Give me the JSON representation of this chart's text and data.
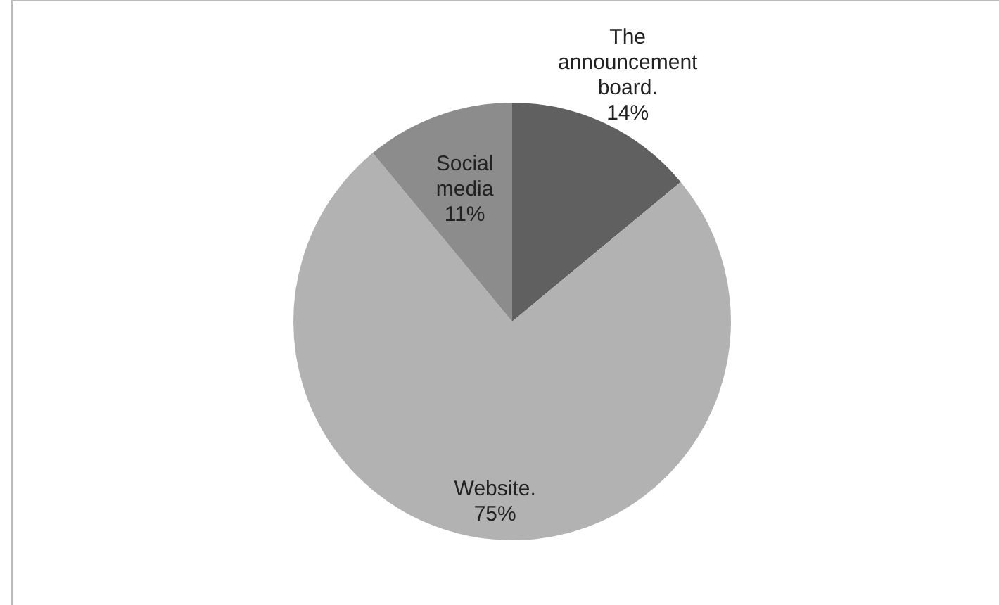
{
  "chart_data": {
    "type": "pie",
    "categories": [
      "The announcement board.",
      "Website.",
      "Social media"
    ],
    "values": [
      14,
      75,
      11
    ],
    "colors": [
      "#606060",
      "#b2b2b2",
      "#8c8c8c"
    ],
    "value_labels": [
      "14%",
      "75%",
      "11%"
    ],
    "legend": false
  }
}
